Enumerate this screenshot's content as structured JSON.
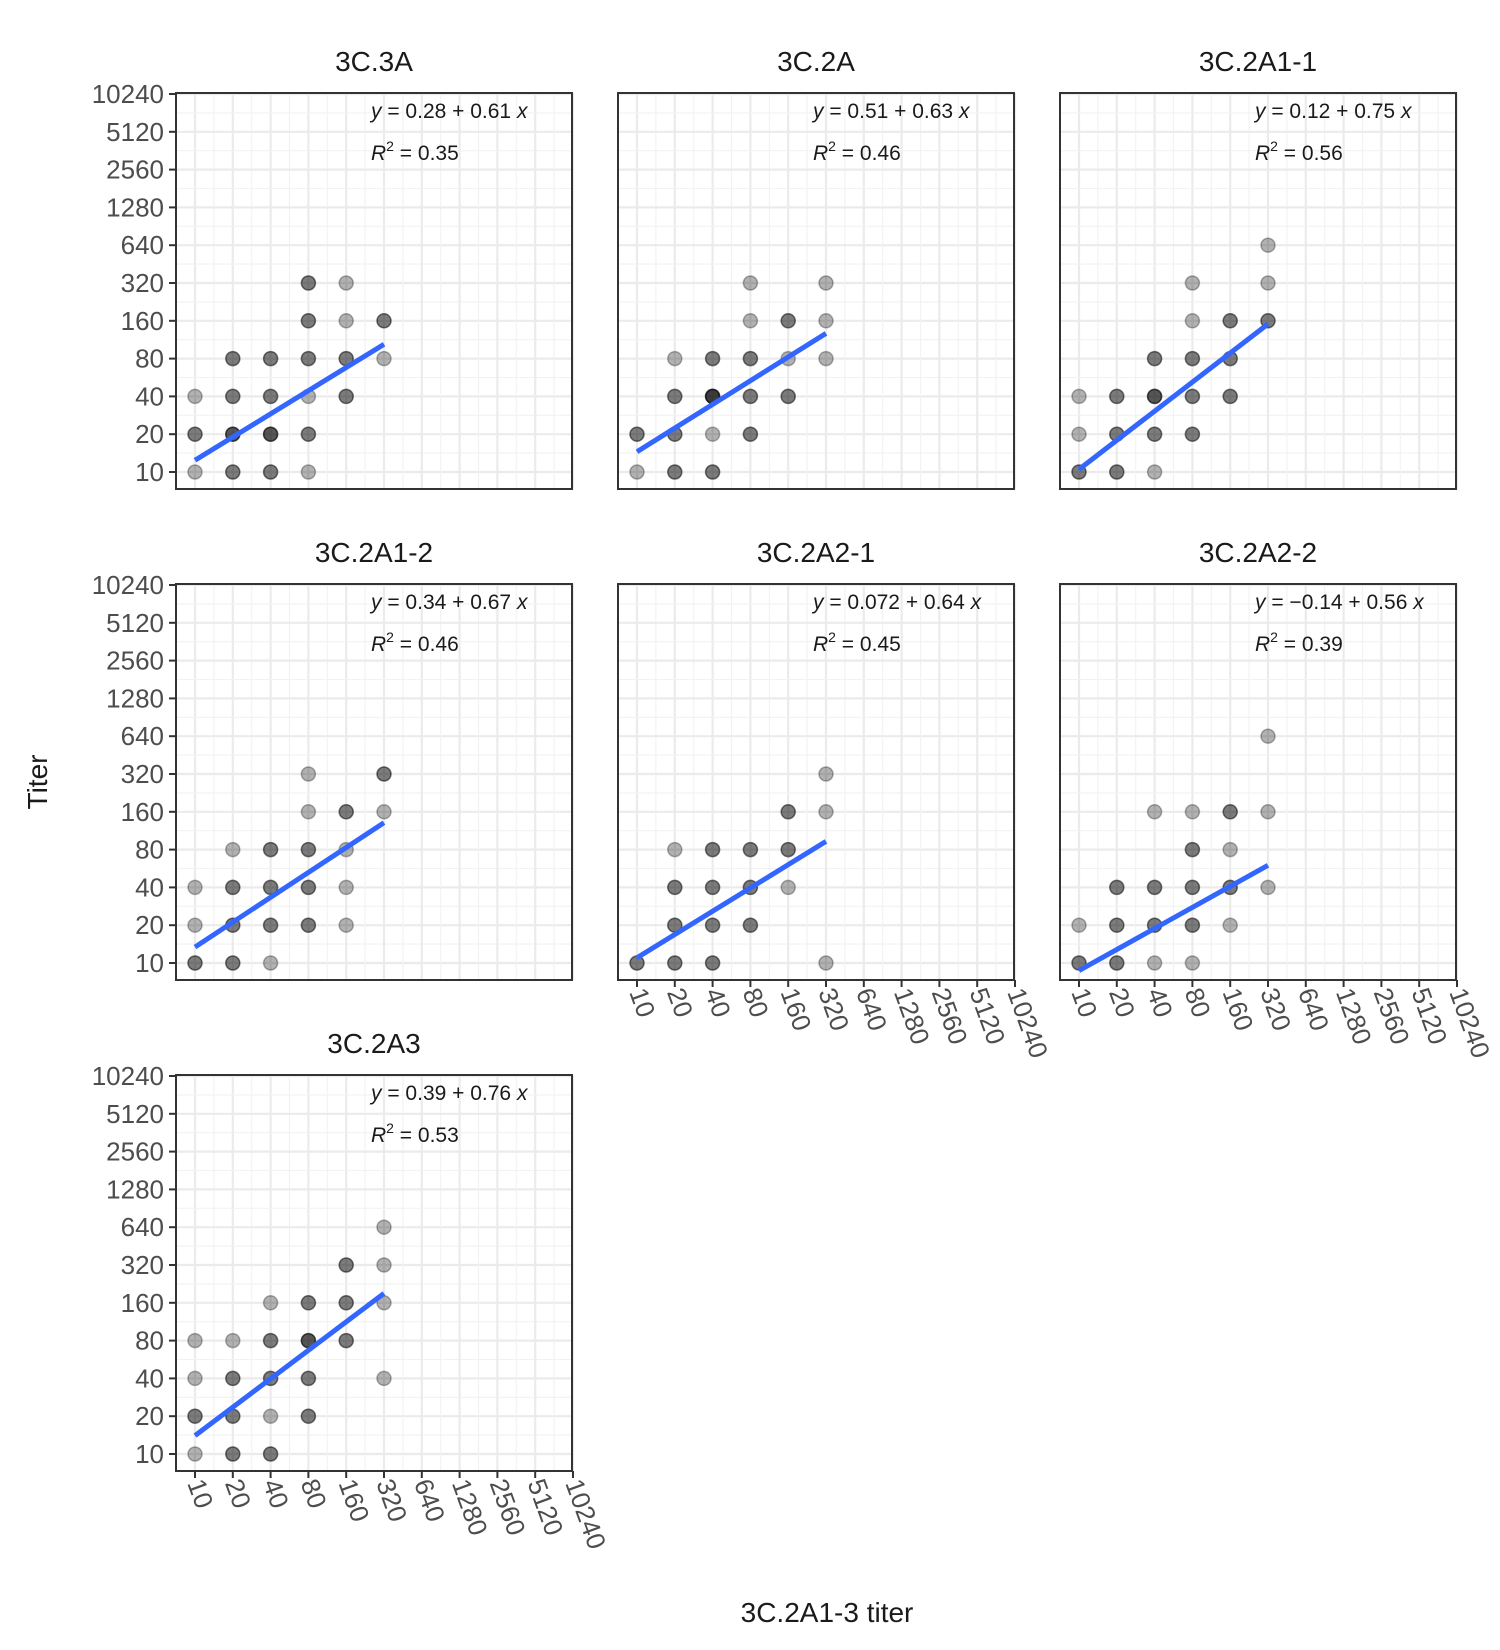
{
  "chart_data": {
    "type": "scatter",
    "xlabel": "3C.2A1-3 titer",
    "ylabel": "Titer",
    "axis_scale": "log2",
    "ticks": [
      "10",
      "20",
      "40",
      "80",
      "160",
      "320",
      "640",
      "1280",
      "2560",
      "5120",
      "10240"
    ],
    "xlim": [
      10,
      10240
    ],
    "ylim": [
      10,
      10240
    ],
    "grid": true,
    "point_color": "#000000",
    "point_alpha": 0.3,
    "fit_line_color": "#3366ff",
    "panels": [
      {
        "title": "3C.3A",
        "equation": {
          "prefix": "y",
          "sign_intercept": "= 0.28 + 0.61",
          "var": "x"
        },
        "r2": "= 0.35",
        "fit": {
          "x": [
            10,
            320
          ],
          "y": [
            12.4,
            104
          ]
        },
        "points": [
          [
            10,
            20
          ],
          [
            10,
            20
          ],
          [
            10,
            10
          ],
          [
            10,
            40
          ],
          [
            20,
            10
          ],
          [
            20,
            10
          ],
          [
            20,
            20
          ],
          [
            20,
            20
          ],
          [
            20,
            20
          ],
          [
            20,
            40
          ],
          [
            20,
            40
          ],
          [
            20,
            80
          ],
          [
            20,
            80
          ],
          [
            40,
            10
          ],
          [
            40,
            10
          ],
          [
            40,
            20
          ],
          [
            40,
            20
          ],
          [
            40,
            20
          ],
          [
            40,
            40
          ],
          [
            40,
            40
          ],
          [
            40,
            80
          ],
          [
            40,
            80
          ],
          [
            80,
            10
          ],
          [
            80,
            20
          ],
          [
            80,
            20
          ],
          [
            80,
            40
          ],
          [
            80,
            80
          ],
          [
            80,
            80
          ],
          [
            80,
            160
          ],
          [
            80,
            160
          ],
          [
            80,
            320
          ],
          [
            80,
            320
          ],
          [
            160,
            40
          ],
          [
            160,
            40
          ],
          [
            160,
            80
          ],
          [
            160,
            80
          ],
          [
            160,
            160
          ],
          [
            160,
            320
          ],
          [
            320,
            80
          ],
          [
            320,
            160
          ],
          [
            320,
            160
          ]
        ]
      },
      {
        "title": "3C.2A",
        "equation": {
          "prefix": "y",
          "sign_intercept": "= 0.51 + 0.63",
          "var": "x"
        },
        "r2": "= 0.46",
        "fit": {
          "x": [
            10,
            320
          ],
          "y": [
            14.5,
            127
          ]
        },
        "points": [
          [
            10,
            10
          ],
          [
            10,
            20
          ],
          [
            10,
            20
          ],
          [
            20,
            10
          ],
          [
            20,
            10
          ],
          [
            20,
            20
          ],
          [
            20,
            20
          ],
          [
            20,
            40
          ],
          [
            20,
            40
          ],
          [
            20,
            80
          ],
          [
            40,
            10
          ],
          [
            40,
            10
          ],
          [
            40,
            20
          ],
          [
            40,
            40
          ],
          [
            40,
            40
          ],
          [
            40,
            40
          ],
          [
            40,
            40
          ],
          [
            40,
            80
          ],
          [
            40,
            80
          ],
          [
            80,
            20
          ],
          [
            80,
            20
          ],
          [
            80,
            40
          ],
          [
            80,
            40
          ],
          [
            80,
            80
          ],
          [
            80,
            80
          ],
          [
            80,
            160
          ],
          [
            80,
            320
          ],
          [
            160,
            40
          ],
          [
            160,
            40
          ],
          [
            160,
            80
          ],
          [
            160,
            160
          ],
          [
            160,
            160
          ],
          [
            320,
            80
          ],
          [
            320,
            160
          ],
          [
            320,
            320
          ]
        ]
      },
      {
        "title": "3C.2A1-1",
        "equation": {
          "prefix": "y",
          "sign_intercept": "= 0.12 + 0.75",
          "var": "x"
        },
        "r2": "= 0.56",
        "fit": {
          "x": [
            10,
            320
          ],
          "y": [
            10.5,
            151
          ]
        },
        "points": [
          [
            10,
            10
          ],
          [
            10,
            10
          ],
          [
            10,
            20
          ],
          [
            10,
            40
          ],
          [
            20,
            10
          ],
          [
            20,
            10
          ],
          [
            20,
            20
          ],
          [
            20,
            20
          ],
          [
            20,
            40
          ],
          [
            20,
            40
          ],
          [
            40,
            10
          ],
          [
            40,
            20
          ],
          [
            40,
            20
          ],
          [
            40,
            40
          ],
          [
            40,
            40
          ],
          [
            40,
            40
          ],
          [
            40,
            80
          ],
          [
            40,
            80
          ],
          [
            80,
            20
          ],
          [
            80,
            20
          ],
          [
            80,
            40
          ],
          [
            80,
            40
          ],
          [
            80,
            80
          ],
          [
            80,
            80
          ],
          [
            80,
            160
          ],
          [
            80,
            320
          ],
          [
            160,
            40
          ],
          [
            160,
            40
          ],
          [
            160,
            80
          ],
          [
            160,
            80
          ],
          [
            160,
            160
          ],
          [
            160,
            160
          ],
          [
            320,
            160
          ],
          [
            320,
            160
          ],
          [
            320,
            320
          ],
          [
            320,
            640
          ]
        ]
      },
      {
        "title": "3C.2A1-2",
        "equation": {
          "prefix": "y",
          "sign_intercept": "= 0.34 + 0.67",
          "var": "x"
        },
        "r2": "= 0.46",
        "fit": {
          "x": [
            10,
            320
          ],
          "y": [
            13.4,
            131
          ]
        },
        "points": [
          [
            10,
            10
          ],
          [
            10,
            10
          ],
          [
            10,
            20
          ],
          [
            10,
            40
          ],
          [
            20,
            10
          ],
          [
            20,
            10
          ],
          [
            20,
            20
          ],
          [
            20,
            20
          ],
          [
            20,
            40
          ],
          [
            20,
            40
          ],
          [
            20,
            80
          ],
          [
            40,
            10
          ],
          [
            40,
            20
          ],
          [
            40,
            20
          ],
          [
            40,
            40
          ],
          [
            40,
            40
          ],
          [
            40,
            80
          ],
          [
            40,
            80
          ],
          [
            80,
            20
          ],
          [
            80,
            20
          ],
          [
            80,
            40
          ],
          [
            80,
            40
          ],
          [
            80,
            80
          ],
          [
            80,
            80
          ],
          [
            80,
            160
          ],
          [
            80,
            320
          ],
          [
            160,
            20
          ],
          [
            160,
            40
          ],
          [
            160,
            80
          ],
          [
            160,
            160
          ],
          [
            160,
            160
          ],
          [
            320,
            160
          ],
          [
            320,
            320
          ],
          [
            320,
            320
          ]
        ]
      },
      {
        "title": "3C.2A2-1",
        "equation": {
          "prefix": "y",
          "sign_intercept": "= 0.072 + 0.64",
          "var": "x"
        },
        "r2": "= 0.45",
        "fit": {
          "x": [
            10,
            320
          ],
          "y": [
            11,
            93
          ]
        },
        "points": [
          [
            10,
            10
          ],
          [
            10,
            10
          ],
          [
            20,
            10
          ],
          [
            20,
            10
          ],
          [
            20,
            20
          ],
          [
            20,
            20
          ],
          [
            20,
            40
          ],
          [
            20,
            40
          ],
          [
            20,
            80
          ],
          [
            40,
            10
          ],
          [
            40,
            10
          ],
          [
            40,
            20
          ],
          [
            40,
            20
          ],
          [
            40,
            40
          ],
          [
            40,
            40
          ],
          [
            40,
            80
          ],
          [
            40,
            80
          ],
          [
            80,
            20
          ],
          [
            80,
            20
          ],
          [
            80,
            40
          ],
          [
            80,
            40
          ],
          [
            80,
            80
          ],
          [
            80,
            80
          ],
          [
            160,
            40
          ],
          [
            160,
            80
          ],
          [
            160,
            80
          ],
          [
            160,
            160
          ],
          [
            160,
            160
          ],
          [
            320,
            10
          ],
          [
            320,
            160
          ],
          [
            320,
            320
          ]
        ]
      },
      {
        "title": "3C.2A2-2",
        "equation": {
          "prefix": "y",
          "sign_intercept": "= −0.14 + 0.56",
          "var": "x"
        },
        "r2": "= 0.39",
        "fit": {
          "x": [
            10,
            320
          ],
          "y": [
            8.7,
            60
          ]
        },
        "points": [
          [
            10,
            10
          ],
          [
            10,
            10
          ],
          [
            10,
            20
          ],
          [
            20,
            10
          ],
          [
            20,
            10
          ],
          [
            20,
            20
          ],
          [
            20,
            20
          ],
          [
            20,
            40
          ],
          [
            20,
            40
          ],
          [
            40,
            10
          ],
          [
            40,
            20
          ],
          [
            40,
            20
          ],
          [
            40,
            40
          ],
          [
            40,
            40
          ],
          [
            40,
            160
          ],
          [
            80,
            10
          ],
          [
            80,
            20
          ],
          [
            80,
            20
          ],
          [
            80,
            40
          ],
          [
            80,
            40
          ],
          [
            80,
            80
          ],
          [
            80,
            80
          ],
          [
            80,
            160
          ],
          [
            160,
            20
          ],
          [
            160,
            40
          ],
          [
            160,
            40
          ],
          [
            160,
            80
          ],
          [
            160,
            160
          ],
          [
            160,
            160
          ],
          [
            320,
            40
          ],
          [
            320,
            160
          ],
          [
            320,
            640
          ]
        ]
      },
      {
        "title": "3C.2A3",
        "equation": {
          "prefix": "y",
          "sign_intercept": "= 0.39 + 0.76",
          "var": "x"
        },
        "r2": "= 0.53",
        "fit": {
          "x": [
            10,
            320
          ],
          "y": [
            14,
            190
          ]
        },
        "points": [
          [
            10,
            10
          ],
          [
            10,
            20
          ],
          [
            10,
            20
          ],
          [
            10,
            40
          ],
          [
            10,
            80
          ],
          [
            20,
            10
          ],
          [
            20,
            10
          ],
          [
            20,
            20
          ],
          [
            20,
            20
          ],
          [
            20,
            40
          ],
          [
            20,
            40
          ],
          [
            20,
            80
          ],
          [
            40,
            10
          ],
          [
            40,
            10
          ],
          [
            40,
            20
          ],
          [
            40,
            40
          ],
          [
            40,
            40
          ],
          [
            40,
            80
          ],
          [
            40,
            80
          ],
          [
            40,
            160
          ],
          [
            80,
            20
          ],
          [
            80,
            20
          ],
          [
            80,
            40
          ],
          [
            80,
            40
          ],
          [
            80,
            80
          ],
          [
            80,
            80
          ],
          [
            80,
            80
          ],
          [
            80,
            160
          ],
          [
            80,
            160
          ],
          [
            160,
            80
          ],
          [
            160,
            80
          ],
          [
            160,
            160
          ],
          [
            160,
            160
          ],
          [
            160,
            320
          ],
          [
            160,
            320
          ],
          [
            320,
            40
          ],
          [
            320,
            160
          ],
          [
            320,
            320
          ],
          [
            320,
            640
          ]
        ]
      }
    ]
  }
}
